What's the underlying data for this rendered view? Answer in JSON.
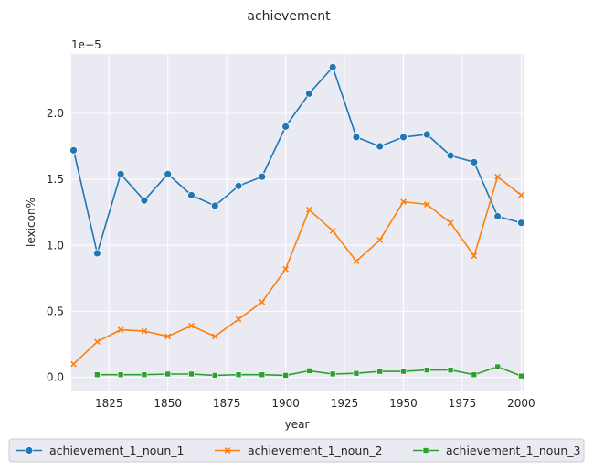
{
  "chart_data": {
    "type": "line",
    "title": "achievement",
    "xlabel": "year",
    "ylabel": "lexicon%",
    "y_offset_label": "1e−5",
    "xlim": [
      1809,
      2001
    ],
    "ylim": [
      -0.1,
      2.45
    ],
    "x_ticks": [
      1825,
      1850,
      1875,
      1900,
      1925,
      1950,
      1975,
      2000
    ],
    "y_ticks": [
      0.0,
      0.5,
      1.0,
      1.5,
      2.0
    ],
    "y_tick_labels": [
      "0.0",
      "0.5",
      "1.0",
      "1.5",
      "2.0"
    ],
    "grid": true,
    "background": "#eaeaf2",
    "legend_position": "bottom",
    "series": [
      {
        "name": "achievement_1_noun_1",
        "color": "#1f77b4",
        "marker": "circle",
        "x": [
          1810,
          1820,
          1830,
          1840,
          1850,
          1860,
          1870,
          1880,
          1890,
          1900,
          1910,
          1920,
          1930,
          1940,
          1950,
          1960,
          1970,
          1980,
          1990,
          2000
        ],
        "y": [
          1.72,
          0.94,
          1.54,
          1.34,
          1.54,
          1.38,
          1.3,
          1.45,
          1.52,
          1.9,
          2.15,
          2.35,
          1.82,
          1.75,
          1.82,
          1.84,
          1.68,
          1.63,
          1.22,
          1.17
        ]
      },
      {
        "name": "achievement_1_noun_2",
        "color": "#ff7f0e",
        "marker": "x",
        "x": [
          1810,
          1820,
          1830,
          1840,
          1850,
          1860,
          1870,
          1880,
          1890,
          1900,
          1910,
          1920,
          1930,
          1940,
          1950,
          1960,
          1970,
          1980,
          1990,
          2000
        ],
        "y": [
          0.1,
          0.27,
          0.36,
          0.35,
          0.31,
          0.39,
          0.31,
          0.44,
          0.57,
          0.82,
          1.27,
          1.11,
          0.88,
          1.04,
          1.33,
          1.31,
          1.17,
          0.92,
          1.52,
          1.38
        ]
      },
      {
        "name": "achievement_1_noun_3",
        "color": "#2ca02c",
        "marker": "square",
        "x": [
          1820,
          1830,
          1840,
          1850,
          1860,
          1870,
          1880,
          1890,
          1900,
          1910,
          1920,
          1930,
          1940,
          1950,
          1960,
          1970,
          1980,
          1990,
          2000
        ],
        "y": [
          0.02,
          0.02,
          0.02,
          0.025,
          0.025,
          0.015,
          0.02,
          0.02,
          0.015,
          0.05,
          0.025,
          0.03,
          0.045,
          0.045,
          0.055,
          0.055,
          0.02,
          0.08,
          0.01
        ]
      }
    ]
  }
}
